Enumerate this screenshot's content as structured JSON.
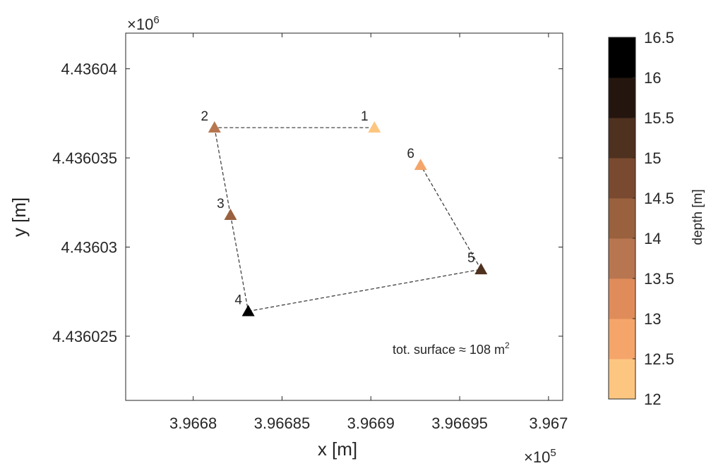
{
  "chart_data": {
    "type": "scatter",
    "title": "",
    "xlabel": "x [m]",
    "ylabel": "y [m]",
    "x_exponent_label": "×10",
    "x_exponent": "5",
    "y_exponent_label": "×10",
    "y_exponent": "6",
    "xlim": [
      396676.2,
      396700.8
    ],
    "ylim": [
      4436021.4,
      4436042.0
    ],
    "x_ticks": [
      396680,
      396685,
      396690,
      396695,
      396700
    ],
    "x_tick_labels": [
      "3.9668",
      "3.96685",
      "3.9669",
      "3.96695",
      "3.967"
    ],
    "y_ticks": [
      4436025,
      4436030,
      4436035,
      4436040
    ],
    "y_tick_labels": [
      "4.436025",
      "4.43603",
      "4.436035",
      "4.43604"
    ],
    "grid": false,
    "points": [
      {
        "label": "1",
        "x": 396690.2,
        "y": 4436036.7,
        "depth": 12.3
      },
      {
        "label": "2",
        "x": 396681.2,
        "y": 4436036.7,
        "depth": 13.8
      },
      {
        "label": "3",
        "x": 396682.1,
        "y": 4436031.8,
        "depth": 14.3
      },
      {
        "label": "4",
        "x": 396683.1,
        "y": 4436026.4,
        "depth": 16.3
      },
      {
        "label": "5",
        "x": 396696.2,
        "y": 4436028.75,
        "depth": 15.3
      },
      {
        "label": "6",
        "x": 396692.8,
        "y": 4436034.6,
        "depth": 12.8
      }
    ],
    "annotation": "tot. surface ≈ 108 m",
    "annotation_sup": "2",
    "colorbar": {
      "label": "depth [m]",
      "range": [
        12,
        16.5
      ],
      "ticks": [
        12,
        12.5,
        13,
        13.5,
        14,
        14.5,
        15,
        15.5,
        16,
        16.5
      ],
      "tick_labels": [
        "12",
        "12.5",
        "13",
        "13.5",
        "14",
        "14.5",
        "15",
        "15.5",
        "16",
        "16.5"
      ],
      "colors": [
        "#fdc680",
        "#f5a56a",
        "#e08c5a",
        "#b87650",
        "#9a613e",
        "#7a4a30",
        "#4f3120",
        "#24160e",
        "#000000"
      ]
    }
  }
}
